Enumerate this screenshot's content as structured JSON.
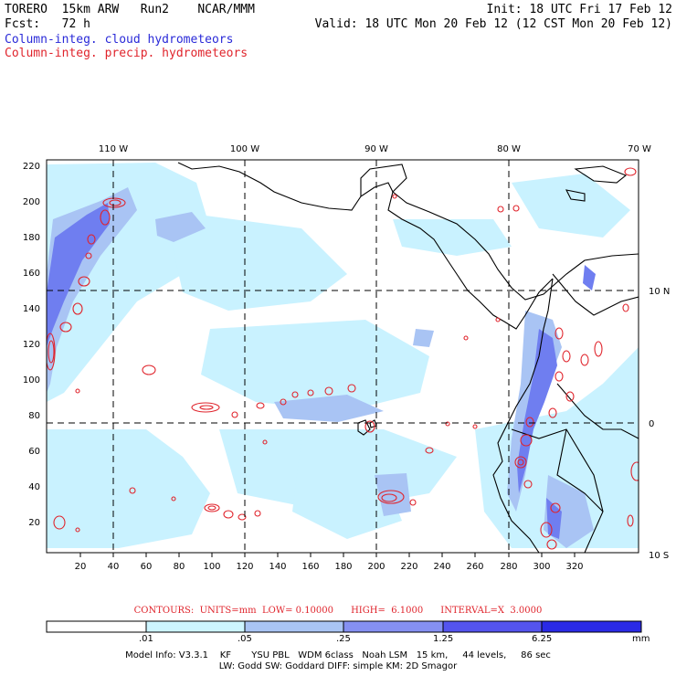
{
  "header": {
    "model": "TORERO  15km ARW   Run2    NCAR/MMM",
    "init": "Init: 18 UTC Fri 17 Feb 12",
    "fcst": "Fcst:   72 h",
    "valid": "Valid: 18 UTC Mon 20 Feb 12 (12 CST Mon 20 Feb 12)",
    "field_cloud": "Column-integ. cloud hydrometeors",
    "field_precip": "Column-integ. precip. hydrometeors"
  },
  "map": {
    "lon_labels": [
      "110 W",
      "100 W",
      "90 W",
      "80 W",
      "70 W"
    ],
    "lat_labels": [
      "10 N",
      "0",
      "10 S"
    ],
    "y_ticks": [
      "220",
      "200",
      "180",
      "160",
      "140",
      "120",
      "100",
      "80",
      "60",
      "40",
      "20"
    ],
    "x_ticks": [
      "20",
      "40",
      "60",
      "80",
      "100",
      "120",
      "140",
      "160",
      "180",
      "200",
      "220",
      "240",
      "260",
      "280",
      "300",
      "320"
    ],
    "colors": {
      "land_boundary": "#000000",
      "gridline": "#000000",
      "cloud_light": "#c9f2ff",
      "cloud_mid": "#a9c4f4",
      "cloud_dark": "#6f7ef0",
      "precip_contour": "#e0242c"
    }
  },
  "contours": {
    "text": "CONTOURS:  UNITS=mm  LOW= 0.10000      HIGH=  6.1000      INTERVAL=X  3.0000"
  },
  "colorbar": {
    "labels": [
      ".01",
      ".05",
      ".25",
      "1.25",
      "6.25"
    ],
    "unit": "mm",
    "colors": [
      "#ffffff",
      "#cdf5ff",
      "#a9c4f4",
      "#8590f2",
      "#5454ee",
      "#2a2ae6"
    ]
  },
  "footer": {
    "line1": "Model Info: V3.3.1    KF       YSU PBL   WDM 6class   Noah LSM   15 km,     44 levels,     86 sec",
    "line2": "LW: Godd SW: Goddard DIFF: simple KM: 2D Smagor"
  }
}
